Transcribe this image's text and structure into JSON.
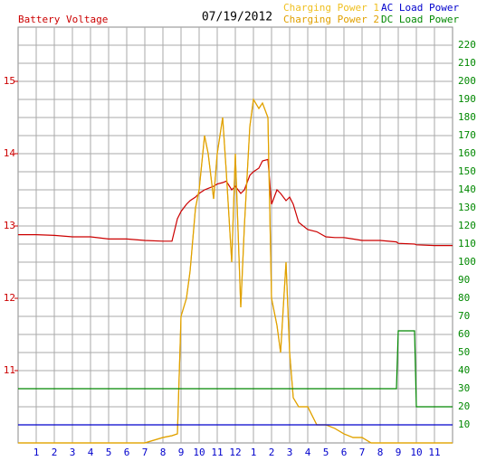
{
  "chart_data": {
    "type": "line",
    "title": "07/19/2012",
    "ylabel": "Battery Voltage",
    "x": [
      0,
      1,
      2,
      3,
      4,
      5,
      6,
      7,
      8,
      8.5,
      8.8,
      9,
      9.3,
      9.5,
      9.8,
      10,
      10.3,
      10.5,
      10.8,
      11,
      11.3,
      11.5,
      11.8,
      12,
      12.3,
      12.5,
      12.8,
      13,
      13.3,
      13.5,
      13.8,
      14,
      14.3,
      14.5,
      14.8,
      15,
      15.2,
      15.5,
      16,
      16.5,
      17,
      17.5,
      18,
      18.5,
      19,
      19.5,
      20,
      20.9,
      21,
      21.9,
      22,
      23,
      24
    ],
    "xlim": [
      0,
      24
    ],
    "xticks": [
      1,
      2,
      3,
      4,
      5,
      6,
      7,
      8,
      9,
      10,
      11,
      12,
      {
        "value": 13,
        "label": "1"
      },
      {
        "value": 14,
        "label": "2"
      },
      {
        "value": 15,
        "label": "3"
      },
      {
        "value": 16,
        "label": "4"
      },
      {
        "value": 17,
        "label": "5"
      },
      {
        "value": 18,
        "label": "6"
      },
      {
        "value": 19,
        "label": "7"
      },
      {
        "value": 20,
        "label": "8"
      },
      {
        "value": 21,
        "label": "9"
      },
      {
        "value": 22,
        "label": "10"
      },
      {
        "value": 23,
        "label": "11"
      }
    ],
    "ylim": [
      10,
      15.75
    ],
    "yticks": [
      11,
      12,
      13,
      14,
      15
    ],
    "y2lim": [
      0,
      230
    ],
    "y2ticks": [
      10,
      20,
      30,
      40,
      50,
      60,
      70,
      80,
      90,
      100,
      110,
      120,
      130,
      140,
      150,
      160,
      170,
      180,
      190,
      200,
      210,
      220
    ],
    "grid": true,
    "series": [
      {
        "name": "Battery Voltage",
        "color": "#cc0000",
        "axis": "y",
        "values": [
          12.88,
          12.88,
          12.87,
          12.85,
          12.85,
          12.82,
          12.82,
          12.8,
          12.79,
          12.79,
          13.1,
          13.2,
          13.3,
          13.35,
          13.4,
          13.45,
          13.5,
          13.52,
          13.55,
          13.58,
          13.6,
          13.62,
          13.5,
          13.55,
          13.45,
          13.5,
          13.7,
          13.75,
          13.8,
          13.9,
          13.92,
          13.3,
          13.5,
          13.45,
          13.35,
          13.4,
          13.3,
          13.05,
          12.95,
          12.92,
          12.85,
          12.84,
          12.84,
          12.82,
          12.8,
          12.8,
          12.8,
          12.78,
          12.76,
          12.75,
          12.74,
          12.73,
          12.73
        ]
      },
      {
        "name": "Charging Power 1",
        "color": "#f0c020",
        "axis": "y2",
        "values": [
          0,
          0,
          0,
          0,
          0,
          0,
          0,
          0,
          3,
          4,
          5,
          70,
          80,
          95,
          130,
          140,
          170,
          160,
          135,
          160,
          180,
          150,
          100,
          160,
          75,
          120,
          175,
          190,
          185,
          188,
          180,
          80,
          65,
          50,
          100,
          50,
          25,
          20,
          20,
          10,
          10,
          8,
          5,
          3,
          3,
          0,
          0,
          0,
          0,
          0,
          0,
          0,
          0
        ]
      },
      {
        "name": "Charging Power 2",
        "color": "#e0a000",
        "axis": "y2",
        "values": [
          0,
          0,
          0,
          0,
          0,
          0,
          0,
          0,
          3,
          4,
          5,
          70,
          80,
          95,
          130,
          140,
          170,
          160,
          135,
          160,
          180,
          150,
          100,
          160,
          75,
          120,
          175,
          190,
          185,
          188,
          180,
          80,
          65,
          50,
          100,
          50,
          25,
          20,
          20,
          10,
          10,
          8,
          5,
          3,
          3,
          0,
          0,
          0,
          0,
          0,
          0,
          0,
          0
        ]
      },
      {
        "name": "AC Load Power",
        "color": "#0000cc",
        "axis": "y2",
        "values": [
          10,
          10,
          10,
          10,
          10,
          10,
          10,
          10,
          10,
          10,
          10,
          10,
          10,
          10,
          10,
          10,
          10,
          10,
          10,
          10,
          10,
          10,
          10,
          10,
          10,
          10,
          10,
          10,
          10,
          10,
          10,
          10,
          10,
          10,
          10,
          10,
          10,
          10,
          10,
          10,
          10,
          10,
          10,
          10,
          10,
          10,
          10,
          10,
          10,
          10,
          10,
          10,
          10
        ]
      },
      {
        "name": "DC Load Power",
        "color": "#008800",
        "axis": "y2",
        "values": [
          30,
          30,
          30,
          30,
          30,
          30,
          30,
          30,
          30,
          30,
          30,
          30,
          30,
          30,
          30,
          30,
          30,
          30,
          30,
          30,
          30,
          30,
          30,
          30,
          30,
          30,
          30,
          30,
          30,
          30,
          30,
          30,
          30,
          30,
          30,
          30,
          30,
          30,
          30,
          30,
          30,
          30,
          30,
          30,
          30,
          30,
          30,
          30,
          62,
          62,
          20,
          20,
          20
        ]
      }
    ]
  }
}
